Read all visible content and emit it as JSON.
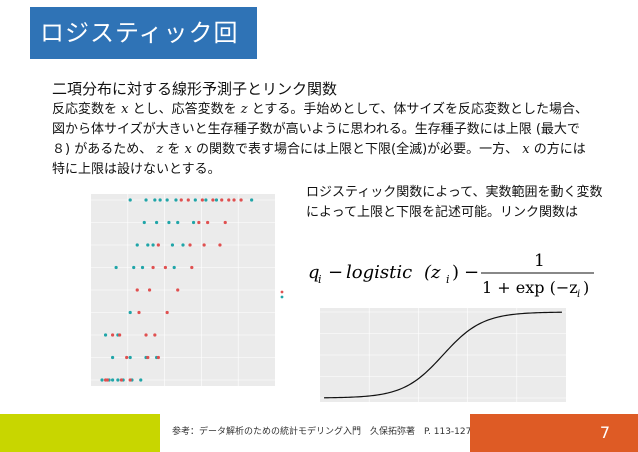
{
  "title": "ロジスティック回帰",
  "subtitle": "二項分布に対する線形予測子とリンク関数",
  "body_paragraph": [
    "反応変数を",
    "x",
    "とし、応答変数を",
    "z",
    "とする。手始めとして、体サイズを反応変数とした場合、図から体サイズが大きいと生存種子数が高いように思われる。生存種子数には上限 (最大で８) があるため、",
    "z",
    "を",
    "x",
    "の関数で表す場合には上限と下限(全滅)が必要。一方、",
    "x",
    "の方には特に上限は設けないとする。"
  ],
  "right_text": "ロジスティック関数によって、実数範囲を動く変数によって上限と下限を記述可能。リンク関数は",
  "formula": {
    "q": "q",
    "sub_i": "i",
    "minus1": "−",
    "logistic": "logistic",
    "arg": "(z",
    "close": ")",
    "minus2": "−",
    "numerator": "1",
    "denominator": "1 + exp (−z",
    "denominator_close": ")"
  },
  "colors": {
    "title_bg": "#2f73b6",
    "footer_green": "#c8d600",
    "footer_orange": "#de5b25",
    "teal": "#20a5a8",
    "red": "#e05050"
  },
  "footer": {
    "reference": "参考：データ解析のための統計モデリング入門　久保拓弥著　P. 113-127",
    "page_number": "7"
  },
  "chart_data": [
    {
      "type": "scatter",
      "rows": [
        {
          "y": 8,
          "teal_x": [
            0.2,
            0.29,
            0.34,
            0.37,
            0.41,
            0.46,
            0.57,
            0.63,
            0.69,
            0.89
          ],
          "red_x": [
            0.49,
            0.53,
            0.61,
            0.67,
            0.72,
            0.76,
            0.79,
            0.83
          ]
        },
        {
          "y": 7,
          "teal_x": [
            0.28,
            0.35,
            0.42,
            0.47,
            0.56
          ],
          "red_x": [
            0.59,
            0.64,
            0.74
          ]
        },
        {
          "y": 6,
          "teal_x": [
            0.24,
            0.3,
            0.33,
            0.44,
            0.5
          ],
          "red_x": [
            0.36,
            0.54,
            0.62,
            0.71
          ]
        },
        {
          "y": 5,
          "teal_x": [
            0.12,
            0.22,
            0.27,
            0.45
          ],
          "red_x": [
            0.33,
            0.4,
            0.55
          ]
        },
        {
          "y": 4,
          "teal_x": [],
          "red_x": [
            0.24,
            0.31,
            0.47
          ]
        },
        {
          "y": 3,
          "teal_x": [
            0.2
          ],
          "red_x": [
            0.25,
            0.41
          ]
        },
        {
          "y": 2,
          "teal_x": [
            0.06,
            0.13
          ],
          "red_x": [
            0.1,
            0.14,
            0.29,
            0.34
          ]
        },
        {
          "y": 1,
          "teal_x": [
            0.1,
            0.2,
            0.29,
            0.35
          ],
          "red_x": [
            0.18,
            0.3,
            0.36
          ]
        },
        {
          "y": 0,
          "teal_x": [
            0.04,
            0.08,
            0.1,
            0.13,
            0.16,
            0.21,
            0.26
          ],
          "red_x": [
            0.06,
            0.07,
            0.15,
            0.2
          ]
        }
      ]
    },
    {
      "type": "line",
      "x_range": [
        -6,
        6
      ],
      "y_range": [
        0,
        1
      ]
    }
  ]
}
